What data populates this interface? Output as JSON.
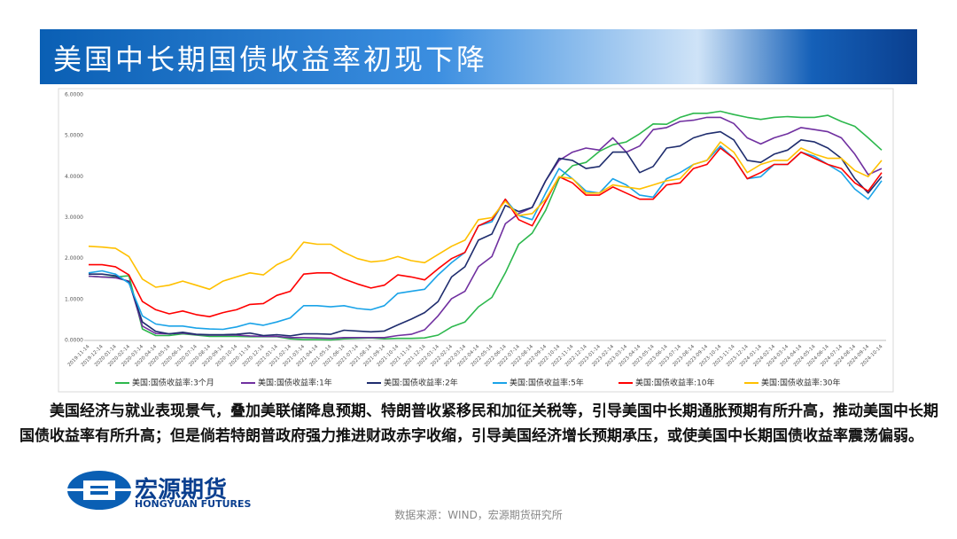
{
  "slide": {
    "title": "美国中长期国债收益率初现下降",
    "paragraph": "美国经济与就业表现景气，叠加美联储降息预期、特朗普收紧移民和加征关税等，引导美国中长期通胀预期有所升高，推动美国中长期国债收益率有所升高；但是倘若特朗普政府强力推进财政赤字收缩，引导美国经济增长预期承压，或使美国中长期国债收益率震荡偏弱。",
    "logo_name": "宏源期货",
    "logo_en": "HONGYUAN FUTURES",
    "source": "数据来源：WIND，宏源期货研究所"
  },
  "chart_data": {
    "type": "line",
    "x": [
      "2019-11-14",
      "2019-12-14",
      "2020-01-14",
      "2020-02-14",
      "2020-03-14",
      "2020-04-14",
      "2020-05-14",
      "2020-06-14",
      "2020-07-14",
      "2020-08-14",
      "2020-09-14",
      "2020-10-14",
      "2020-11-14",
      "2020-12-14",
      "2021-01-14",
      "2021-02-14",
      "2021-03-14",
      "2021-04-14",
      "2021-05-14",
      "2021-06-14",
      "2021-07-14",
      "2021-08-14",
      "2021-09-14",
      "2021-10-14",
      "2021-11-14",
      "2021-12-14",
      "2022-01-14",
      "2022-02-14",
      "2022-03-14",
      "2022-04-14",
      "2022-05-14",
      "2022-06-14",
      "2022-07-14",
      "2022-08-14",
      "2022-09-14",
      "2022-10-14",
      "2022-11-14",
      "2022-12-14",
      "2023-01-14",
      "2023-02-14",
      "2023-03-14",
      "2023-04-14",
      "2023-05-14",
      "2023-06-14",
      "2023-07-14",
      "2023-08-14",
      "2023-09-14",
      "2023-10-14",
      "2023-11-14",
      "2023-12-14",
      "2024-01-14",
      "2024-02-14",
      "2024-03-14",
      "2024-04-14",
      "2024-05-14",
      "2024-06-14",
      "2024-07-14",
      "2024-08-14",
      "2024-09-14",
      "2024-10-14"
    ],
    "series": [
      {
        "name": "美国:国债收益率:3个月",
        "color": "#2db84d",
        "values": [
          1.57,
          1.55,
          1.55,
          1.58,
          0.28,
          0.12,
          0.12,
          0.16,
          0.13,
          0.1,
          0.1,
          0.1,
          0.09,
          0.09,
          0.09,
          0.04,
          0.02,
          0.02,
          0.01,
          0.04,
          0.05,
          0.06,
          0.04,
          0.05,
          0.05,
          0.06,
          0.13,
          0.33,
          0.45,
          0.82,
          1.05,
          1.65,
          2.35,
          2.62,
          3.18,
          3.95,
          4.27,
          4.35,
          4.62,
          4.78,
          4.85,
          5.05,
          5.29,
          5.28,
          5.45,
          5.55,
          5.55,
          5.6,
          5.52,
          5.45,
          5.4,
          5.45,
          5.47,
          5.45,
          5.45,
          5.5,
          5.35,
          5.23,
          4.95,
          4.65
        ]
      },
      {
        "name": "美国:国债收益率:1年",
        "color": "#7030a0",
        "values": [
          1.57,
          1.55,
          1.53,
          1.45,
          0.35,
          0.17,
          0.16,
          0.18,
          0.14,
          0.13,
          0.13,
          0.13,
          0.11,
          0.1,
          0.1,
          0.07,
          0.07,
          0.06,
          0.05,
          0.07,
          0.07,
          0.07,
          0.07,
          0.12,
          0.15,
          0.26,
          0.6,
          1.02,
          1.2,
          1.8,
          2.05,
          2.85,
          3.1,
          3.25,
          3.9,
          4.4,
          4.6,
          4.7,
          4.65,
          4.95,
          4.6,
          4.75,
          5.15,
          5.2,
          5.35,
          5.38,
          5.45,
          5.45,
          5.3,
          4.95,
          4.8,
          4.95,
          5.05,
          5.2,
          5.15,
          5.1,
          4.95,
          4.55,
          4.05,
          4.2
        ]
      },
      {
        "name": "美国:国债收益率:2年",
        "color": "#1f2d6e",
        "values": [
          1.62,
          1.62,
          1.58,
          1.42,
          0.45,
          0.22,
          0.16,
          0.2,
          0.15,
          0.14,
          0.14,
          0.15,
          0.18,
          0.12,
          0.14,
          0.11,
          0.16,
          0.16,
          0.15,
          0.25,
          0.23,
          0.21,
          0.23,
          0.38,
          0.52,
          0.68,
          0.95,
          1.55,
          1.8,
          2.45,
          2.6,
          3.3,
          3.15,
          3.25,
          3.9,
          4.45,
          4.4,
          4.2,
          4.25,
          4.6,
          4.6,
          4.1,
          4.25,
          4.7,
          4.75,
          4.95,
          5.05,
          5.1,
          4.9,
          4.4,
          4.35,
          4.55,
          4.65,
          4.9,
          4.85,
          4.7,
          4.45,
          3.95,
          3.6,
          4.0
        ]
      },
      {
        "name": "美国:国债收益率:5年",
        "color": "#1aa3e8",
        "values": [
          1.65,
          1.7,
          1.62,
          1.4,
          0.6,
          0.4,
          0.35,
          0.35,
          0.3,
          0.28,
          0.27,
          0.33,
          0.42,
          0.37,
          0.45,
          0.55,
          0.85,
          0.85,
          0.82,
          0.85,
          0.78,
          0.75,
          0.85,
          1.15,
          1.2,
          1.25,
          1.6,
          1.9,
          2.15,
          2.8,
          2.9,
          3.45,
          3.05,
          2.95,
          3.6,
          4.2,
          3.95,
          3.65,
          3.6,
          3.95,
          3.8,
          3.55,
          3.5,
          3.95,
          4.1,
          4.3,
          4.4,
          4.75,
          4.45,
          3.95,
          4.0,
          4.3,
          4.3,
          4.6,
          4.5,
          4.3,
          4.1,
          3.7,
          3.45,
          3.9
        ]
      },
      {
        "name": "美国:国债收益率:10年",
        "color": "#ff0000",
        "values": [
          1.85,
          1.85,
          1.8,
          1.6,
          0.95,
          0.75,
          0.65,
          0.72,
          0.63,
          0.58,
          0.68,
          0.75,
          0.88,
          0.9,
          1.1,
          1.2,
          1.62,
          1.65,
          1.65,
          1.5,
          1.38,
          1.28,
          1.35,
          1.6,
          1.55,
          1.48,
          1.75,
          2.0,
          2.15,
          2.8,
          2.95,
          3.45,
          2.95,
          2.8,
          3.4,
          4.0,
          3.85,
          3.55,
          3.55,
          3.75,
          3.6,
          3.45,
          3.45,
          3.8,
          3.85,
          4.2,
          4.3,
          4.7,
          4.45,
          3.95,
          4.1,
          4.3,
          4.3,
          4.6,
          4.45,
          4.3,
          4.2,
          3.85,
          3.65,
          4.1
        ]
      },
      {
        "name": "美国:国债收益率:30年",
        "color": "#ffc000",
        "values": [
          2.3,
          2.28,
          2.25,
          2.05,
          1.5,
          1.3,
          1.35,
          1.45,
          1.35,
          1.25,
          1.45,
          1.55,
          1.65,
          1.6,
          1.85,
          2.0,
          2.4,
          2.35,
          2.35,
          2.15,
          2.0,
          1.92,
          1.95,
          2.05,
          1.95,
          1.9,
          2.1,
          2.3,
          2.45,
          2.95,
          3.0,
          3.4,
          3.05,
          3.1,
          3.45,
          4.0,
          3.95,
          3.6,
          3.6,
          3.8,
          3.75,
          3.7,
          3.8,
          3.9,
          3.95,
          4.3,
          4.4,
          4.85,
          4.6,
          4.1,
          4.3,
          4.4,
          4.4,
          4.7,
          4.55,
          4.45,
          4.45,
          4.15,
          4.0,
          4.4
        ]
      }
    ],
    "ylim": [
      0,
      6
    ],
    "yticks": [
      {
        "value": 0,
        "label": "0.0000"
      },
      {
        "value": 1,
        "label": "1.0000"
      },
      {
        "value": 2,
        "label": "2.0000"
      },
      {
        "value": 3,
        "label": "3.0000"
      },
      {
        "value": 4,
        "label": "4.0000"
      },
      {
        "value": 5,
        "label": "5.0000"
      },
      {
        "value": 6,
        "label": "6.0000"
      }
    ],
    "grid": false,
    "legend": "bottom"
  }
}
